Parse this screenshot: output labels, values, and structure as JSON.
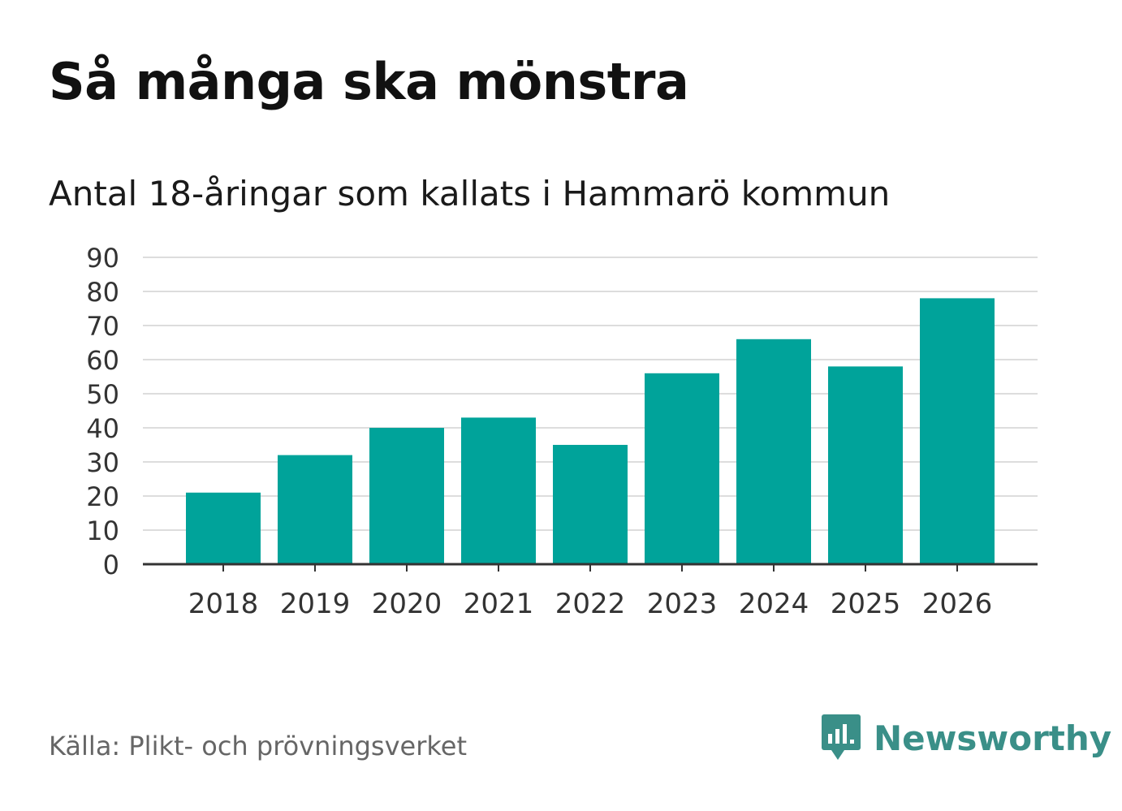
{
  "header": {
    "title": "Så många ska mönstra",
    "subtitle": "Antal 18-åringar som kallats i Hammarö kommun"
  },
  "footer": {
    "source": "Källa: Plikt- och prövningsverket",
    "brand": "Newsworthy",
    "brand_icon": "newsworthy-logo-icon"
  },
  "colors": {
    "bar": "#00a39a",
    "grid": "#dddddd",
    "axis": "#333333",
    "tick_text": "#333333",
    "brand": "#3a8f88"
  },
  "chart_data": {
    "type": "bar",
    "title": "Så många ska mönstra",
    "subtitle": "Antal 18-åringar som kallats i Hammarö kommun",
    "xlabel": "",
    "ylabel": "",
    "categories": [
      "2018",
      "2019",
      "2020",
      "2021",
      "2022",
      "2023",
      "2024",
      "2025",
      "2026"
    ],
    "values": [
      21,
      32,
      40,
      43,
      35,
      56,
      66,
      58,
      78
    ],
    "ylim": [
      0,
      90
    ],
    "yticks": [
      0,
      10,
      20,
      30,
      40,
      50,
      60,
      70,
      80,
      90
    ],
    "grid": true,
    "legend": "none"
  }
}
